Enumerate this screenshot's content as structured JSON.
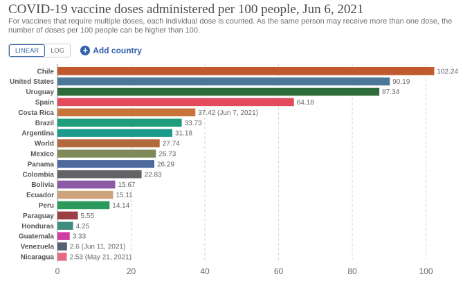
{
  "header": {
    "title": "COVID-19 vaccine doses administered per 100 people, Jun 6, 2021",
    "subtitle": "For vaccines that require multiple doses, each individual dose is counted. As the same person may receive more than one dose, the number of doses per 100 people can be higher than 100."
  },
  "controls": {
    "linear_label": "LINEAR",
    "log_label": "LOG",
    "active_scale": "linear",
    "add_country_label": "Add country",
    "accent_color": "#3360a9"
  },
  "chart_data": {
    "type": "bar",
    "orientation": "horizontal",
    "title": "COVID-19 vaccine doses administered per 100 people, Jun 6, 2021",
    "xlabel": "",
    "ylabel": "",
    "xlim": [
      0,
      100
    ],
    "ticks": [
      0,
      20,
      40,
      60,
      80,
      100
    ],
    "grid": "vertical dashed",
    "bars": [
      {
        "name": "Chile",
        "value": 102.24,
        "label": "102.24",
        "color": "#c05a2e"
      },
      {
        "name": "United States",
        "value": 90.19,
        "label": "90.19",
        "color": "#4d7796"
      },
      {
        "name": "Uruguay",
        "value": 87.34,
        "label": "87.34",
        "color": "#2e6b3a"
      },
      {
        "name": "Spain",
        "value": 64.18,
        "label": "64.18",
        "color": "#e14b5c"
      },
      {
        "name": "Costa Rica",
        "value": 37.42,
        "label": "37.42 (Jun 7, 2021)",
        "color": "#c8743a"
      },
      {
        "name": "Brazil",
        "value": 33.73,
        "label": "33.73",
        "color": "#1f9c7c"
      },
      {
        "name": "Argentina",
        "value": 31.18,
        "label": "31.18",
        "color": "#1c9a8c"
      },
      {
        "name": "World",
        "value": 27.74,
        "label": "27.74",
        "color": "#b06a3c"
      },
      {
        "name": "Mexico",
        "value": 26.73,
        "label": "26.73",
        "color": "#7e8a5a"
      },
      {
        "name": "Panama",
        "value": 26.29,
        "label": "26.29",
        "color": "#4c6a9c"
      },
      {
        "name": "Colombia",
        "value": 22.83,
        "label": "22.83",
        "color": "#646466"
      },
      {
        "name": "Bolivia",
        "value": 15.67,
        "label": "15.67",
        "color": "#8a5aa5"
      },
      {
        "name": "Ecuador",
        "value": 15.11,
        "label": "15.11",
        "color": "#cca37a"
      },
      {
        "name": "Peru",
        "value": 14.14,
        "label": "14.14",
        "color": "#2c9a5a"
      },
      {
        "name": "Paraguay",
        "value": 5.55,
        "label": "5.55",
        "color": "#9b3f44"
      },
      {
        "name": "Honduras",
        "value": 4.25,
        "label": "4.25",
        "color": "#3f8c80"
      },
      {
        "name": "Guatemala",
        "value": 3.33,
        "label": "3.33",
        "color": "#d13ea2"
      },
      {
        "name": "Venezuela",
        "value": 2.6,
        "label": "2.6 (Jun 11, 2021)",
        "color": "#546170"
      },
      {
        "name": "Nicaragua",
        "value": 2.53,
        "label": "2.53 (May 21, 2021)",
        "color": "#e56a84"
      }
    ]
  }
}
